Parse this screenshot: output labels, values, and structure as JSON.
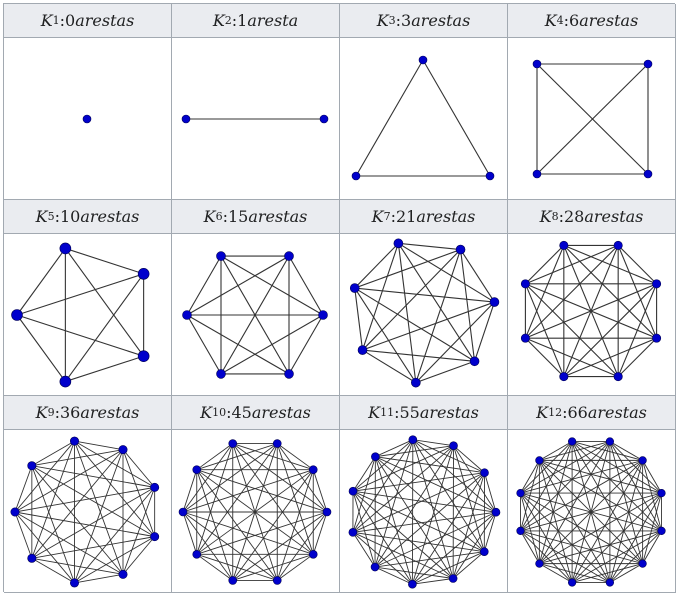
{
  "graphs": [
    {
      "id": 1,
      "label_sub": "1",
      "label_num": "0",
      "label_word": "arestas"
    },
    {
      "id": 2,
      "label_sub": "2",
      "label_num": "1",
      "label_word": "aresta"
    },
    {
      "id": 3,
      "label_sub": "3",
      "label_num": "3",
      "label_word": "arestas"
    },
    {
      "id": 4,
      "label_sub": "4",
      "label_num": "6",
      "label_word": "arestas"
    },
    {
      "id": 5,
      "label_sub": "5",
      "label_num": "10",
      "label_word": "arestas"
    },
    {
      "id": 6,
      "label_sub": "6",
      "label_num": "15",
      "label_word": "arestas"
    },
    {
      "id": 7,
      "label_sub": "7",
      "label_num": "21",
      "label_word": "arestas"
    },
    {
      "id": 8,
      "label_sub": "8",
      "label_num": "28",
      "label_word": "arestas"
    },
    {
      "id": 9,
      "label_sub": "9",
      "label_num": "36",
      "label_word": "arestas"
    },
    {
      "id": 10,
      "label_sub": "10",
      "label_num": "45",
      "label_word": "arestas"
    },
    {
      "id": 11,
      "label_sub": "11",
      "label_num": "55",
      "label_word": "arestas"
    },
    {
      "id": 12,
      "label_sub": "12",
      "label_num": "66",
      "label_word": "arestas"
    }
  ],
  "label_letter": "K",
  "label_separator": " : ",
  "colors": {
    "vertex": "#0000cc",
    "vertex_outline": "#000055",
    "edge": "#333333",
    "header_bg": "#eaecf0",
    "border": "#a2a9b1"
  }
}
